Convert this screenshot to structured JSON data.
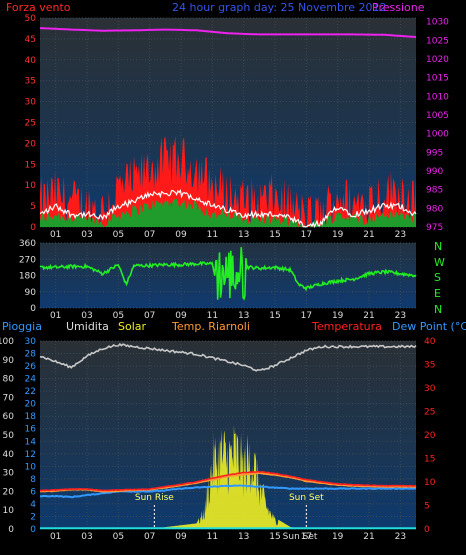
{
  "header": {
    "wind_title": "Forza vento",
    "date_title": "24 hour graph day:  25 Novembre 2012",
    "pressure_title": "Pressione"
  },
  "wind_dir_labels": [
    "N",
    "W",
    "S",
    "E",
    "N"
  ],
  "bottom_header": {
    "rain": "Pioggia",
    "humidity": "Umidita",
    "solar": "Solar",
    "temp_riarnoli": "Temp. Riarnoli",
    "temperature": "Temperatura",
    "dewpoint": "Dew Point (°C)"
  },
  "annotations": {
    "sunrise": "Sun Rise",
    "sunset": "Sun Set",
    "sunrise_hour": 7.3,
    "sunset_hour": 17.0,
    "x_label_extra": "Sun Set"
  },
  "colors": {
    "background": "#000000",
    "panel_top": "#1f2a30",
    "panel_bottom": "#0f3a66",
    "grid": "#3a4a55",
    "wind_gust": "#ff1a1a",
    "wind_avg": "#1f9c2c",
    "wind_line": "#ffffff",
    "pressure": "#ee22ee",
    "wind_dir": "#22ee22",
    "humidity": "#c8c8c8",
    "temperature": "#ff2020",
    "temp_riarnoli": "#ff9933",
    "dewpoint": "#3399ff",
    "solar": "#eeee22",
    "rain": "#22dddd",
    "text_blue": "#3399ff",
    "text_purple": "#cc33cc"
  },
  "chart_data": [
    {
      "type": "line",
      "title": "24 hour graph day:  25 Novembre 2012",
      "xlabel": "",
      "x_ticks": [
        "01",
        "03",
        "05",
        "07",
        "09",
        "11",
        "13",
        "15",
        "17",
        "19",
        "21",
        "23"
      ],
      "xlim": [
        0,
        24
      ],
      "left_axis": {
        "label": "Forza vento",
        "ticks": [
          0,
          5,
          10,
          15,
          20,
          25,
          30,
          35,
          40,
          45,
          50
        ],
        "ylim": [
          0,
          50
        ]
      },
      "right_axis": {
        "label": "Pressione",
        "ticks": [
          975,
          980,
          985,
          990,
          995,
          1000,
          1005,
          1010,
          1015,
          1020,
          1025,
          1030
        ],
        "ylim": [
          975,
          1031
        ]
      },
      "series": [
        {
          "name": "Pressione",
          "axis": "right",
          "x": [
            0,
            2,
            4,
            6,
            8,
            10,
            12,
            14,
            16,
            18,
            20,
            22,
            24
          ],
          "values": [
            1028.3,
            1027.9,
            1027.6,
            1027.7,
            1027.9,
            1027.7,
            1026.9,
            1026.6,
            1026.6,
            1026.6,
            1026.6,
            1026.5,
            1025.9
          ]
        },
        {
          "name": "Forza vento",
          "axis": "left",
          "x": [
            0,
            1,
            2,
            3,
            4,
            5,
            6,
            7,
            8,
            9,
            10,
            11,
            12,
            13,
            14,
            15,
            16,
            17,
            18,
            19,
            20,
            21,
            22,
            23,
            24
          ],
          "values": [
            6,
            8,
            6,
            5,
            4,
            9,
            11,
            14,
            16,
            16,
            14,
            10,
            8,
            6,
            6,
            7,
            5,
            2,
            3,
            8,
            5,
            7,
            8,
            9,
            6
          ]
        },
        {
          "name": "",
          "axis": "left",
          "x": [
            0,
            1,
            2,
            3,
            4,
            5,
            6,
            7,
            8,
            9,
            10,
            11,
            12,
            13,
            14,
            15,
            16,
            17,
            18,
            19,
            20,
            21,
            22,
            23,
            24
          ],
          "values": [
            2,
            3,
            2,
            2,
            1,
            3,
            4,
            5,
            6,
            6,
            5,
            3,
            3,
            2,
            2,
            2,
            1,
            0,
            1,
            3,
            2,
            2,
            3,
            3,
            2
          ]
        },
        {
          "name": "",
          "axis": "left",
          "x": [
            0,
            1,
            2,
            3,
            4,
            5,
            6,
            7,
            8,
            9,
            10,
            11,
            12,
            13,
            14,
            15,
            16,
            17,
            18,
            19,
            20,
            21,
            22,
            23,
            24
          ],
          "values": [
            3,
            5,
            3,
            3,
            2,
            5,
            6,
            8,
            8,
            8,
            7,
            5,
            4,
            3,
            3,
            3,
            2,
            0,
            1,
            5,
            3,
            4,
            5,
            5,
            3
          ]
        }
      ]
    },
    {
      "type": "line",
      "title": "",
      "x_ticks": [
        "01",
        "03",
        "05",
        "07",
        "09",
        "11",
        "13",
        "15",
        "17",
        "19",
        "21",
        "23"
      ],
      "xlim": [
        0,
        24
      ],
      "left_axis": {
        "label": "",
        "ticks": [
          0,
          90,
          180,
          270,
          360
        ],
        "ylim": [
          0,
          360
        ]
      },
      "right_axis_labels": [
        "N",
        "W",
        "S",
        "E",
        "N"
      ],
      "series": [
        {
          "name": "",
          "x": [
            0,
            1,
            2,
            3,
            4,
            5,
            5.5,
            6,
            7,
            8,
            9,
            10,
            11,
            11.5,
            12,
            12.5,
            13,
            14,
            15,
            16,
            16.5,
            17,
            18,
            19,
            20,
            21,
            22,
            23,
            24
          ],
          "values": [
            225,
            225,
            230,
            230,
            190,
            240,
            130,
            235,
            235,
            240,
            240,
            245,
            245,
            60,
            320,
            60,
            230,
            220,
            225,
            210,
            130,
            110,
            135,
            150,
            160,
            190,
            200,
            190,
            180
          ]
        }
      ]
    },
    {
      "type": "area",
      "title": "",
      "x_ticks": [
        "01",
        "03",
        "05",
        "07",
        "09",
        "11",
        "13",
        "15",
        "17",
        "19",
        "21",
        "23"
      ],
      "xlim": [
        0,
        24
      ],
      "left_axis": {
        "label": "Pioggia",
        "ticks": [
          0,
          10,
          20,
          30,
          40,
          50,
          60,
          70,
          80,
          90,
          100
        ],
        "ylim": [
          0,
          100
        ]
      },
      "left_axis_2": {
        "label": "",
        "ticks": [
          0,
          2,
          4,
          6,
          8,
          10,
          12,
          14,
          16,
          18,
          20,
          22,
          24,
          26,
          28,
          30
        ],
        "ylim": [
          0,
          30
        ]
      },
      "right_axis": {
        "label": "Dew Point (°C)",
        "ticks": [
          0,
          5,
          10,
          15,
          20,
          25,
          30,
          35,
          40
        ],
        "ylim": [
          0,
          40
        ]
      },
      "series": [
        {
          "name": "Umidita",
          "axis": "left",
          "x": [
            0,
            1,
            2,
            3,
            4,
            5,
            6,
            7,
            8,
            9,
            10,
            11,
            12,
            13,
            14,
            15,
            16,
            17,
            18,
            19,
            20,
            21,
            22,
            23,
            24
          ],
          "values": [
            92,
            89,
            86,
            92,
            96,
            98,
            97,
            96,
            95,
            94,
            93,
            91,
            89,
            87,
            84,
            87,
            91,
            95,
            97,
            97,
            97,
            97,
            97,
            97,
            97
          ]
        },
        {
          "name": "Temperatura",
          "axis": "right",
          "x": [
            0,
            1,
            2,
            3,
            4,
            5,
            6,
            7,
            8,
            9,
            10,
            11,
            12,
            13,
            14,
            15,
            16,
            17,
            18,
            19,
            20,
            21,
            22,
            23,
            24
          ],
          "values": [
            8.2,
            8.3,
            8.5,
            8.5,
            8.2,
            8.3,
            8.4,
            8.5,
            9.0,
            9.5,
            10.0,
            10.8,
            11.5,
            12.0,
            12.2,
            11.8,
            11.2,
            10.5,
            10.0,
            9.6,
            9.4,
            9.3,
            9.2,
            9.2,
            9.2
          ]
        },
        {
          "name": "Temp. Riarnoli",
          "axis": "right",
          "x": [
            0,
            1,
            2,
            3,
            4,
            5,
            6,
            7,
            8,
            9,
            10,
            11,
            12,
            13,
            14,
            15,
            16,
            17,
            18,
            19,
            20,
            21,
            22,
            23,
            24
          ],
          "values": [
            8.0,
            8.1,
            8.4,
            8.4,
            8.0,
            8.1,
            8.3,
            8.4,
            8.8,
            9.3,
            9.8,
            10.5,
            11.2,
            11.6,
            11.9,
            11.5,
            11.0,
            10.2,
            9.8,
            9.4,
            9.2,
            9.1,
            9.0,
            9.0,
            9.0
          ]
        },
        {
          "name": "Dew Point (°C)",
          "axis": "right",
          "x": [
            0,
            1,
            2,
            3,
            4,
            5,
            6,
            7,
            8,
            9,
            10,
            11,
            12,
            13,
            14,
            15,
            16,
            17,
            18,
            19,
            20,
            21,
            22,
            23,
            24
          ],
          "values": [
            7.0,
            7.0,
            6.8,
            7.2,
            7.6,
            8.0,
            8.0,
            8.0,
            8.2,
            8.6,
            8.8,
            9.0,
            9.2,
            9.2,
            9.0,
            8.8,
            8.6,
            8.6,
            8.6,
            8.6,
            8.6,
            8.6,
            8.6,
            8.6,
            8.6
          ]
        },
        {
          "name": "Solar",
          "axis": "left",
          "x": [
            7.3,
            8,
            9,
            10,
            10.5,
            11,
            11.5,
            12,
            12.5,
            13,
            13.5,
            14,
            14.5,
            15,
            16,
            17.0
          ],
          "values": [
            0,
            1,
            2,
            3,
            12,
            45,
            54,
            50,
            55,
            44,
            52,
            30,
            15,
            6,
            1,
            0
          ]
        },
        {
          "name": "Pioggia",
          "axis": "left",
          "x": [
            0,
            24
          ],
          "values": [
            0.4,
            0.4
          ]
        }
      ]
    }
  ]
}
